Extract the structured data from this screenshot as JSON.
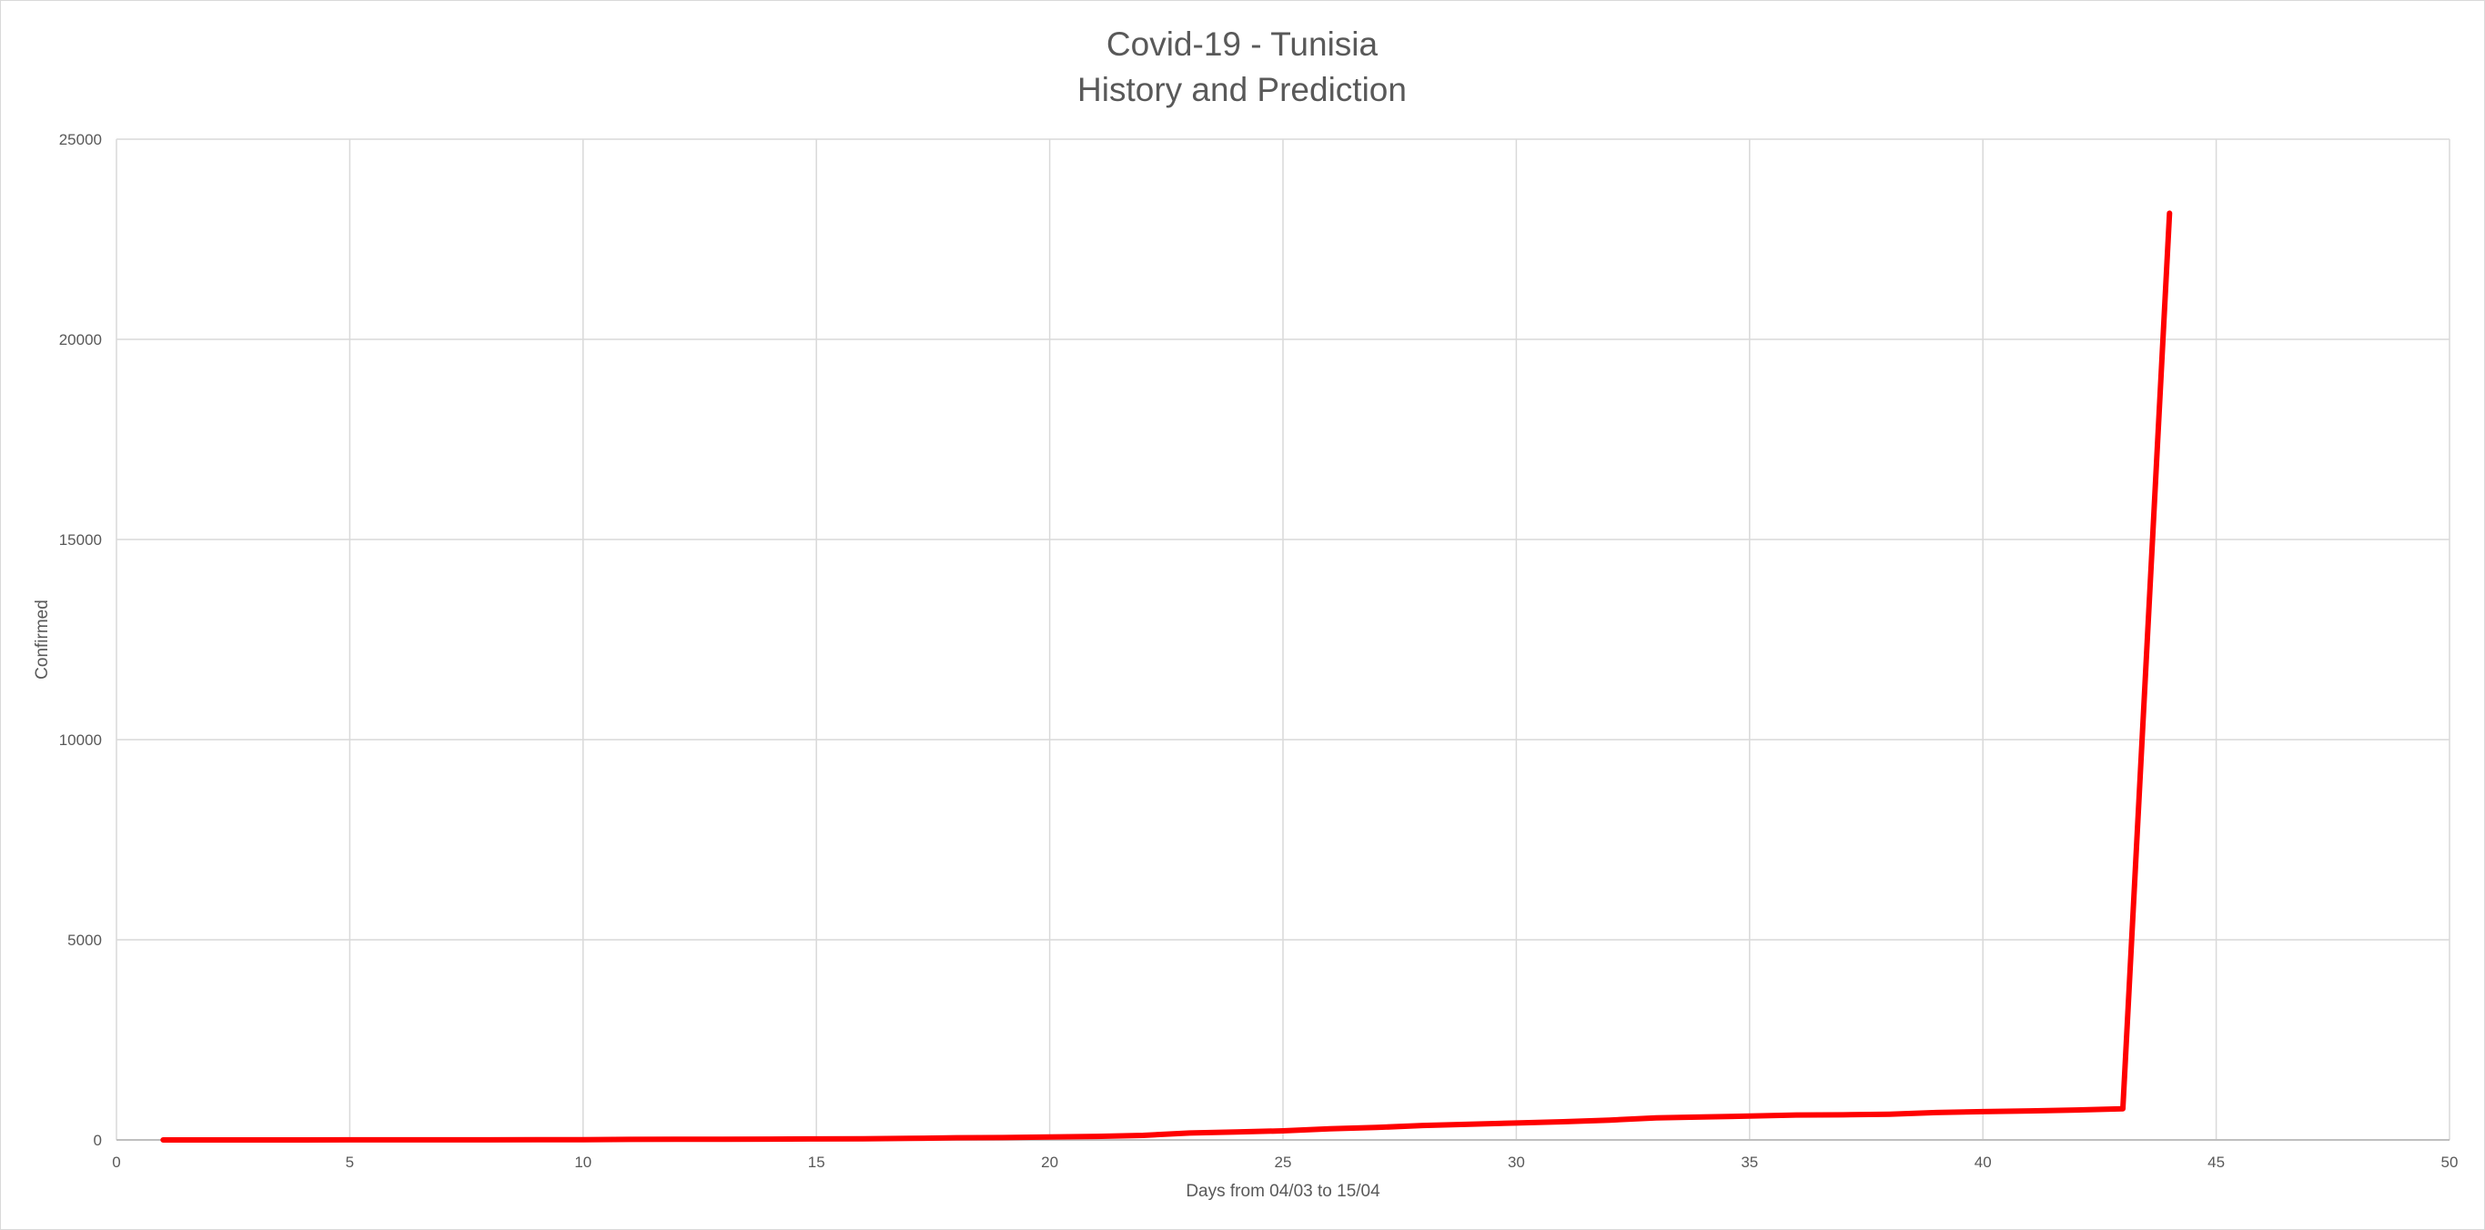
{
  "chart_data": {
    "type": "line",
    "title": "Covid-19 - Tunisia",
    "subtitle": "History and Prediction",
    "xlabel": "Days from 04/03 to 15/04",
    "ylabel": "Confirmed",
    "xlim": [
      0,
      50
    ],
    "ylim": [
      0,
      25000
    ],
    "x_ticks": [
      0,
      5,
      10,
      15,
      20,
      25,
      30,
      35,
      40,
      45,
      50
    ],
    "y_ticks": [
      0,
      5000,
      10000,
      15000,
      20000,
      25000
    ],
    "grid": true,
    "legend": "none",
    "series": [
      {
        "color": "#ff0000",
        "x": [
          1,
          2,
          3,
          4,
          5,
          6,
          7,
          8,
          9,
          10,
          11,
          12,
          13,
          14,
          15,
          16,
          17,
          18,
          19,
          20,
          21,
          22,
          23,
          24,
          25,
          26,
          27,
          28,
          29,
          30,
          31,
          32,
          33,
          34,
          35,
          36,
          37,
          38,
          39,
          40,
          41,
          42,
          43,
          44
        ],
        "y": [
          1,
          1,
          1,
          1,
          2,
          2,
          2,
          2,
          5,
          7,
          13,
          16,
          18,
          20,
          24,
          29,
          39,
          54,
          60,
          75,
          89,
          114,
          173,
          197,
          227,
          278,
          312,
          362,
          394,
          423,
          455,
          495,
          553,
          574,
          596,
          623,
          628,
          643,
          685,
          707,
          726,
          747,
          780,
          23150
        ]
      }
    ]
  }
}
